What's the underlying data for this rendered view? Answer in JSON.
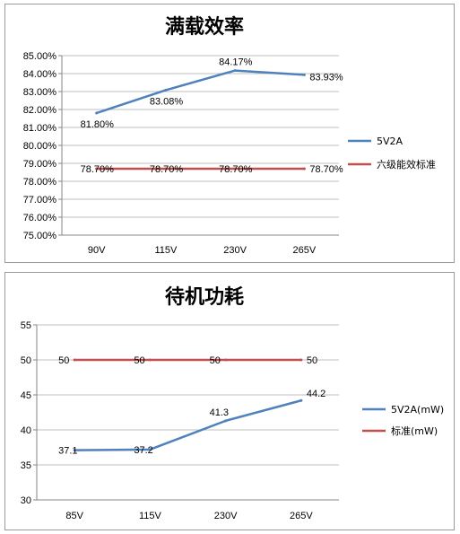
{
  "chart_data": [
    {
      "type": "line",
      "title": "满载效率",
      "categories": [
        "90V",
        "115V",
        "230V",
        "265V"
      ],
      "ylim": [
        75,
        85
      ],
      "yticks": [
        "75.00%",
        "76.00%",
        "77.00%",
        "78.00%",
        "79.00%",
        "80.00%",
        "81.00%",
        "82.00%",
        "83.00%",
        "84.00%",
        "85.00%"
      ],
      "grid": true,
      "legend": "right",
      "series": [
        {
          "name": "5V2A",
          "color": "#4f81bd",
          "values": [
            81.8,
            83.08,
            84.17,
            83.93
          ],
          "labels": [
            "81.80%",
            "83.08%",
            "84.17%",
            "83.93%"
          ]
        },
        {
          "name": "六级能效标准",
          "color": "#c0504d",
          "values": [
            78.7,
            78.7,
            78.7,
            78.7
          ],
          "labels": [
            "78.70%",
            "78.70%",
            "78.70%",
            "78.70%"
          ]
        }
      ]
    },
    {
      "type": "line",
      "title": "待机功耗",
      "categories": [
        "85V",
        "115V",
        "230V",
        "265V"
      ],
      "ylim": [
        30,
        55
      ],
      "yticks": [
        "30",
        "35",
        "40",
        "45",
        "50",
        "55"
      ],
      "grid": true,
      "legend": "right",
      "series": [
        {
          "name": "5V2A(mW)",
          "color": "#4f81bd",
          "values": [
            37.1,
            37.2,
            41.3,
            44.2
          ],
          "labels": [
            "37.1",
            "37.2",
            "41.3",
            "44.2"
          ]
        },
        {
          "name": "标准(mW)",
          "color": "#c0504d",
          "values": [
            50,
            50,
            50,
            50
          ],
          "labels": [
            "50",
            "50",
            "50",
            "50"
          ]
        }
      ]
    }
  ]
}
